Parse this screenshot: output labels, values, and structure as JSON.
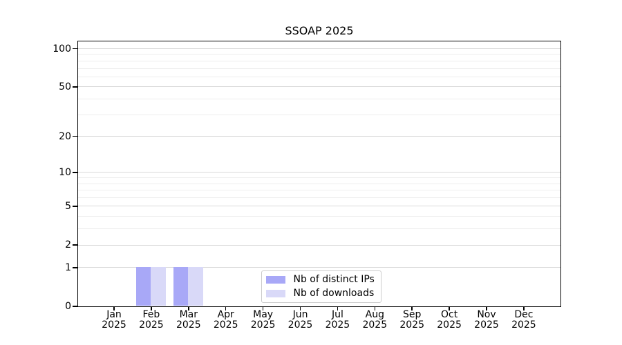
{
  "chart_data": {
    "type": "bar",
    "title": "SSOAP 2025",
    "categories": [
      "Jan 2025",
      "Feb 2025",
      "Mar 2025",
      "Apr 2025",
      "May 2025",
      "Jun 2025",
      "Jul 2025",
      "Aug 2025",
      "Sep 2025",
      "Oct 2025",
      "Nov 2025",
      "Dec 2025"
    ],
    "series": [
      {
        "name": "Nb of distinct IPs",
        "color": "#a8a8f7",
        "values": [
          0,
          1,
          1,
          0,
          0,
          0,
          0,
          0,
          0,
          0,
          0,
          0
        ]
      },
      {
        "name": "Nb of downloads",
        "color": "#d9d9f8",
        "values": [
          0,
          1,
          1,
          0,
          0,
          0,
          0,
          0,
          0,
          0,
          0,
          0
        ]
      }
    ],
    "yscale": "log1p",
    "ylim": [
      0,
      114
    ],
    "yticks_major": [
      0,
      1,
      2,
      5,
      10,
      20,
      50,
      100
    ],
    "yticks_minor": [
      3,
      4,
      6,
      7,
      8,
      9,
      30,
      40,
      60,
      70,
      80,
      90
    ],
    "xlabel": "",
    "ylabel": "",
    "grid": "horizontal",
    "legend_position": "inside-bottom-center"
  },
  "colors": {
    "background": "#ffffff",
    "axis": "#000000",
    "text": "#000000",
    "grid_major": "#d9d9d9",
    "grid_minor": "#ededed",
    "legend_border": "#cccccc",
    "bar_distinct_ips": "#a8a8f7",
    "bar_downloads": "#d9d9f8"
  }
}
